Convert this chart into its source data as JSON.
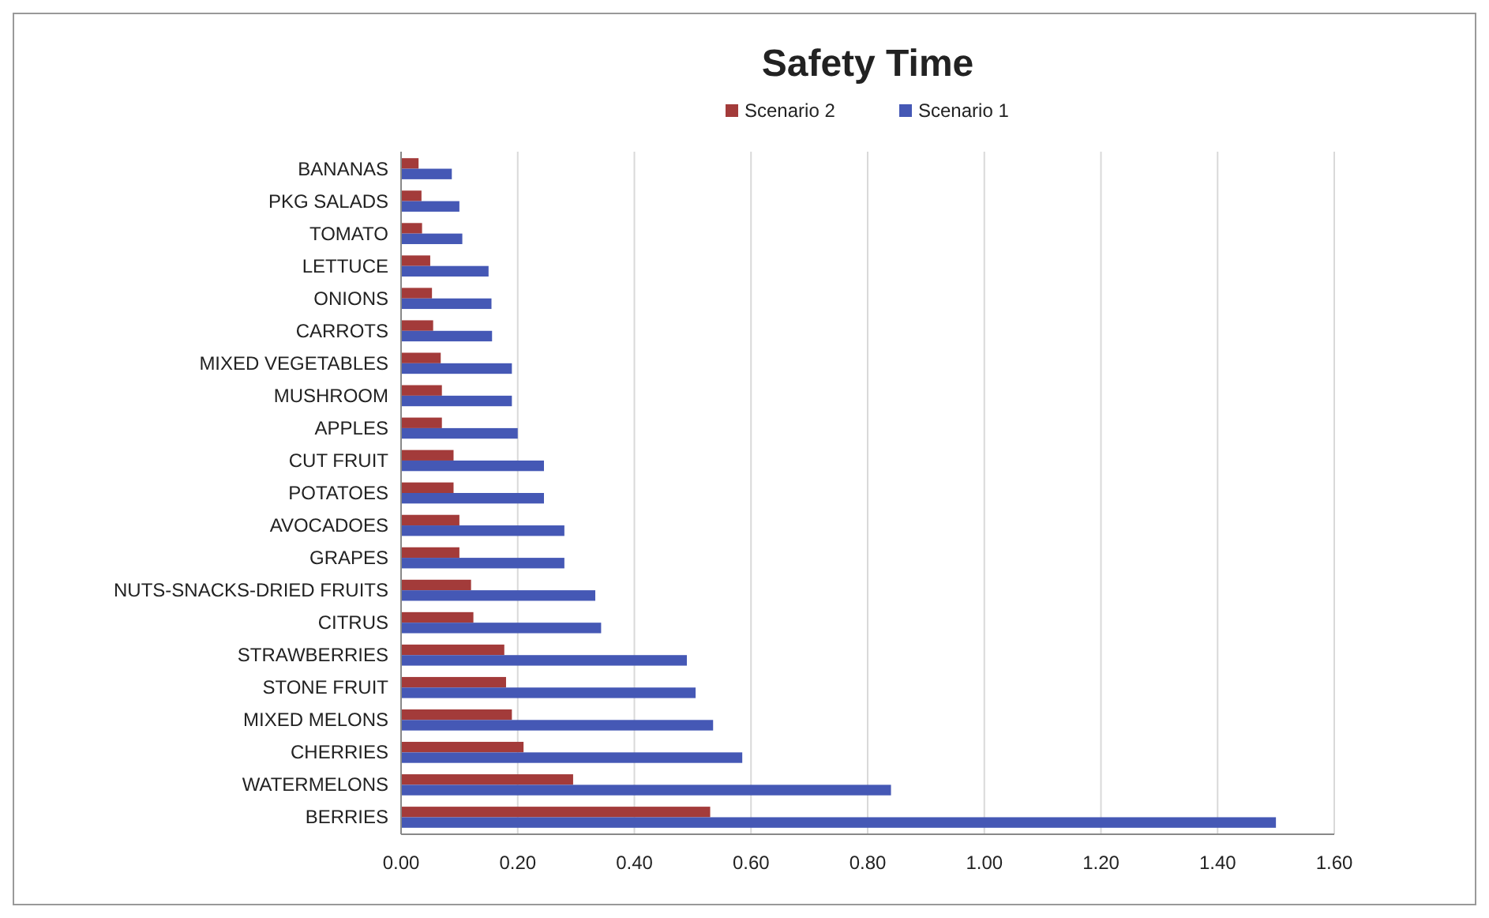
{
  "chart_data": {
    "type": "bar",
    "orientation": "horizontal",
    "title": "Safety Time",
    "categories": [
      "BANANAS",
      "PKG SALADS",
      "TOMATO",
      "LETTUCE",
      "ONIONS",
      "CARROTS",
      "MIXED VEGETABLES",
      "MUSHROOM",
      "APPLES",
      "CUT FRUIT",
      "POTATOES",
      "AVOCADOES",
      "GRAPES",
      "NUTS-SNACKS-DRIED FRUITS",
      "CITRUS",
      "STRAWBERRIES",
      "STONE FRUIT",
      "MIXED MELONS",
      "CHERRIES",
      "WATERMELONS",
      "BERRIES"
    ],
    "series": [
      {
        "name": "Scenario 2",
        "color": "#a33b3a",
        "values": [
          0.03,
          0.035,
          0.036,
          0.05,
          0.053,
          0.055,
          0.068,
          0.07,
          0.07,
          0.09,
          0.09,
          0.1,
          0.1,
          0.12,
          0.124,
          0.177,
          0.18,
          0.19,
          0.21,
          0.295,
          0.53
        ]
      },
      {
        "name": "Scenario 1",
        "color": "#4558b5",
        "values": [
          0.087,
          0.1,
          0.105,
          0.15,
          0.155,
          0.156,
          0.19,
          0.19,
          0.2,
          0.245,
          0.245,
          0.28,
          0.28,
          0.333,
          0.343,
          0.49,
          0.505,
          0.535,
          0.585,
          0.84,
          1.5
        ]
      }
    ],
    "xlim": [
      0,
      1.6
    ],
    "xticks": [
      {
        "value": 0,
        "label": "0.00"
      },
      {
        "value": 0.2,
        "label": "0.20"
      },
      {
        "value": 0.4,
        "label": "0.40"
      },
      {
        "value": 0.6,
        "label": "0.60"
      },
      {
        "value": 0.8,
        "label": "0.80"
      },
      {
        "value": 1,
        "label": "1.00"
      },
      {
        "value": 1.2,
        "label": "1.20"
      },
      {
        "value": 1.4,
        "label": "1.40"
      },
      {
        "value": 1.6,
        "label": "1.60"
      }
    ],
    "grid": "x",
    "legend": "top"
  }
}
